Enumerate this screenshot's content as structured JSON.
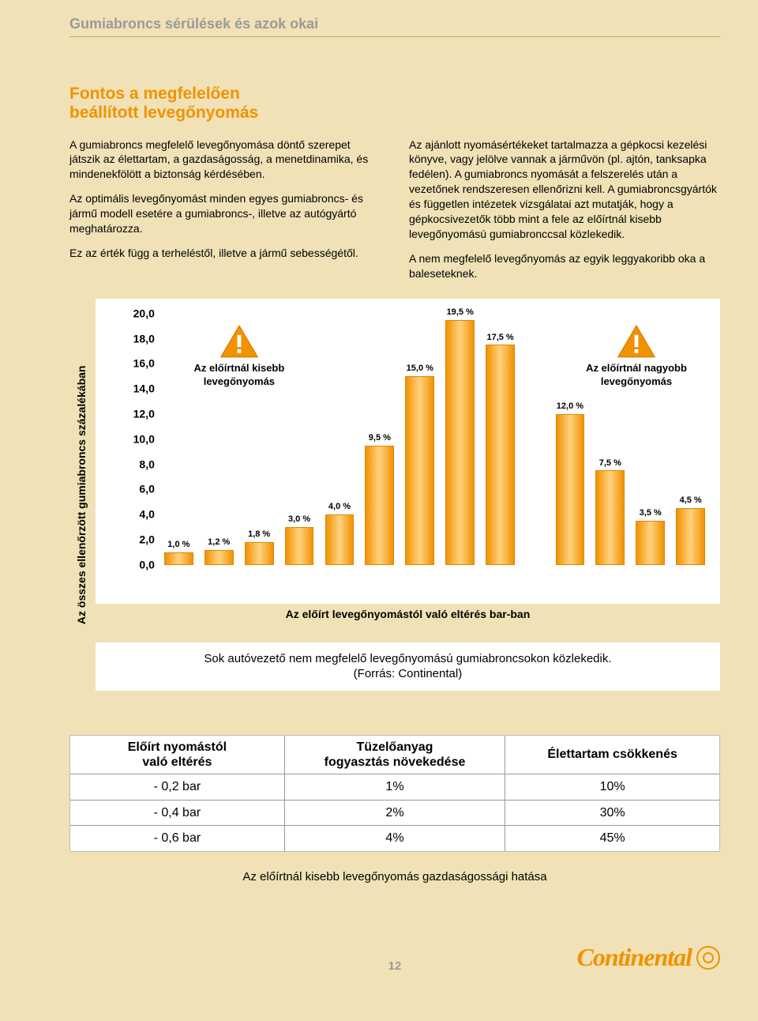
{
  "header": {
    "title": "Gumiabroncs sérülések és azok okai"
  },
  "subhead": {
    "line1": "Fontos a megfelelően",
    "line2": "beállított levegőnyomás"
  },
  "body": {
    "left": {
      "p1": "A gumiabroncs megfelelő levegőnyomása döntő szerepet játszik az élettartam, a gazdaságosság, a menetdinamika, és mindenekfölött a biztonság kérdésében.",
      "p2": "Az optimális levegőnyomást minden egyes gumiabroncs- és jármű modell esetére a gumiabroncs-, illetve az autógyártó meghatározza.",
      "p3": "Ez az érték függ a terheléstől, illetve a jármű sebességétől."
    },
    "right": {
      "p1": "Az ajánlott nyomásértékeket tartalmazza a gépkocsi kezelési könyve, vagy jelölve vannak a járművön (pl. ajtón, tanksapka fedélen). A gumiabroncs nyomását a felszerelés után a vezetőnek rendszeresen ellenőrizni kell. A gumiabroncsgyártók és független intézetek vizsgálatai azt mutatják, hogy a gépkocsivezetők több mint a fele az előírtnál kisebb levegőnyomású gumiabronccsal közlekedik.",
      "p2": "A nem megfelelő levegőnyomás az egyik leggyakoribb oka a baleseteknek."
    }
  },
  "chart": {
    "type": "bar",
    "y_axis_label": "Az összes ellenőrzött gumiabroncs százalékában",
    "x_axis_label": "Az előírt levegőnyomástól való eltérés bar-ban",
    "ylim_max": 20,
    "yticks": [
      "20,0",
      "18,0",
      "16,0",
      "14,0",
      "12,0",
      "10,0",
      "8,0",
      "6,0",
      "4,0",
      "2,0",
      "0,0"
    ],
    "ytick_values": [
      20,
      18,
      16,
      14,
      12,
      10,
      8,
      6,
      4,
      2,
      0
    ],
    "bars": [
      {
        "x": "-0,7",
        "label": "1,0 %",
        "value": 1.0
      },
      {
        "x": "-0,7",
        "label": "1,2 %",
        "value": 1.2
      },
      {
        "x": "-0,6",
        "label": "1,8 %",
        "value": 1.8
      },
      {
        "x": "-0,5",
        "label": "3,0 %",
        "value": 3.0
      },
      {
        "x": "-0,4",
        "label": "4,0 %",
        "value": 4.0
      },
      {
        "x": "-0,3",
        "label": "9,5 %",
        "value": 9.5
      },
      {
        "x": "-0,2",
        "label": "15,0 %",
        "value": 15.0
      },
      {
        "x": "-0,1",
        "label": "19,5 %",
        "value": 19.5
      },
      {
        "x": "",
        "label": "17,5 %",
        "value": 17.5
      },
      {
        "x": "+0,1",
        "label": "12,0 %",
        "value": 12.0
      },
      {
        "x": "+0,2",
        "label": "7,5 %",
        "value": 7.5
      },
      {
        "x": "+0,3",
        "label": "3,5 %",
        "value": 3.5
      },
      {
        "x": "+0,3",
        "label": "4,5 %",
        "value": 4.5
      }
    ],
    "gap_after_index": 8,
    "bar_color": "#f29200",
    "background_color": "#ffffff",
    "note_left": "Az előírtnál kisebb levegőnyomás",
    "note_right": "Az előírtnál nagyobb levegőnyomás",
    "warning_fill": "#f29200",
    "warning_stroke": "#d87f00"
  },
  "caption": {
    "line1": "Sok autóvezető nem megfelelő levegőnyomású gumiabroncsokon közlekedik.",
    "line2": "(Forrás: Continental)"
  },
  "table": {
    "headers": [
      "Előírt nyomástól\nvaló eltérés",
      "Tüzelőanyag\nfogyasztás növekedése",
      "Élettartam csökkenés"
    ],
    "rows": [
      [
        "- 0,2 bar",
        "1%",
        "10%"
      ],
      [
        "- 0,4 bar",
        "2%",
        "30%"
      ],
      [
        "- 0,6 bar",
        "4%",
        "45%"
      ]
    ],
    "caption": "Az előírtnál kisebb levegőnyomás gazdaságossági hatása"
  },
  "footer": {
    "page": "12",
    "brand": "Continental"
  }
}
